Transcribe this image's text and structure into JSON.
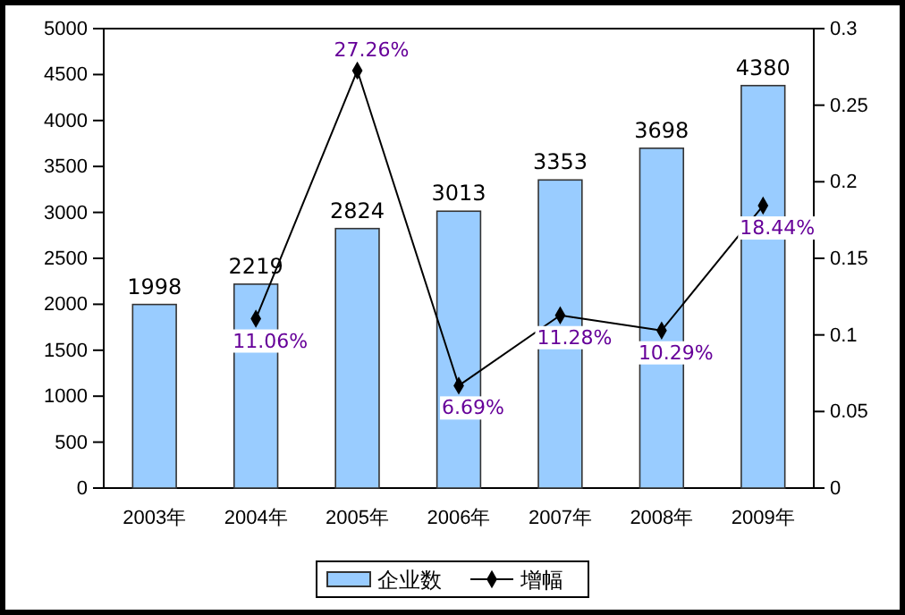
{
  "chart_data": {
    "type": "bar",
    "categories": [
      "2003年",
      "2004年",
      "2005年",
      "2006年",
      "2007年",
      "2008年",
      "2009年"
    ],
    "series": [
      {
        "name": "企业数",
        "color": "#99ccff",
        "values": [
          1998,
          2219,
          2824,
          3013,
          3353,
          3698,
          4380
        ]
      },
      {
        "name": "增幅",
        "type": "line",
        "axis": "y2",
        "color": "#000000",
        "marker": "diamond",
        "values": [
          null,
          0.1106,
          0.2726,
          0.0669,
          0.1128,
          0.1029,
          0.1844
        ],
        "value_labels": [
          null,
          "11.06%",
          "27.26%",
          "6.69%",
          "11.28%",
          "10.29%",
          "18.44%"
        ]
      }
    ],
    "data_labels": true,
    "ylim": [
      0,
      5000
    ],
    "yticks": [
      0,
      500,
      1000,
      1500,
      2000,
      2500,
      3000,
      3500,
      4000,
      4500,
      5000
    ],
    "y2lim": [
      0,
      0.3
    ],
    "y2ticks": [
      0,
      0.05,
      0.1,
      0.15,
      0.2,
      0.25,
      0.3
    ],
    "legend": "bottom",
    "grid": false
  }
}
